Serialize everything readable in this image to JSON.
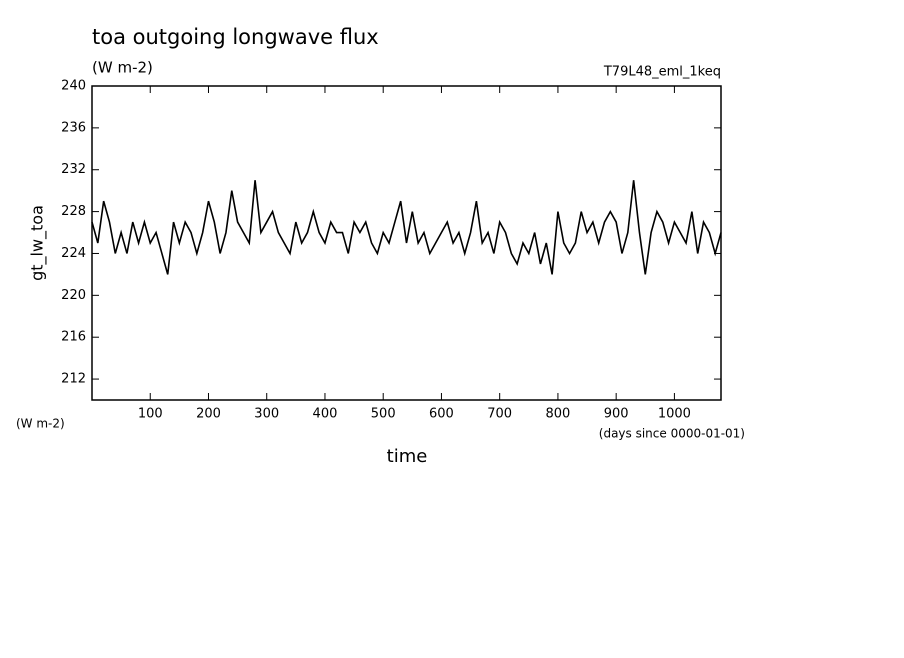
{
  "chart_data": {
    "type": "line",
    "title": "toa outgoing longwave flux",
    "subtitle": "(W m-2)",
    "annotation": "T79L48_eml_1keq",
    "y_label": "gt_lw_toa",
    "y_units": "(W m-2)",
    "x_label": "time",
    "x_units": "(days since 0000-01-01)",
    "x": [
      0,
      10,
      20,
      30,
      40,
      50,
      60,
      70,
      80,
      90,
      100,
      110,
      120,
      130,
      140,
      150,
      160,
      170,
      180,
      190,
      200,
      210,
      220,
      230,
      240,
      250,
      260,
      270,
      280,
      290,
      300,
      310,
      320,
      330,
      340,
      350,
      360,
      370,
      380,
      390,
      400,
      410,
      420,
      430,
      440,
      450,
      460,
      470,
      480,
      490,
      500,
      510,
      520,
      530,
      540,
      550,
      560,
      570,
      580,
      590,
      600,
      610,
      620,
      630,
      640,
      650,
      660,
      670,
      680,
      690,
      700,
      710,
      720,
      730,
      740,
      750,
      760,
      770,
      780,
      790,
      800,
      810,
      820,
      830,
      840,
      850,
      860,
      870,
      880,
      890,
      900,
      910,
      920,
      930,
      940,
      950,
      960,
      970,
      980,
      990,
      1000,
      1010,
      1020,
      1030,
      1040,
      1050,
      1060,
      1070,
      1080
    ],
    "series": [
      {
        "name": "gt_lw_toa",
        "color": "#000000",
        "values": [
          227,
          225,
          229,
          227,
          224,
          226,
          224,
          227,
          225,
          227,
          225,
          226,
          224,
          222,
          227,
          225,
          227,
          226,
          224,
          226,
          229,
          227,
          224,
          226,
          230,
          227,
          226,
          225,
          231,
          226,
          227,
          228,
          226,
          225,
          224,
          227,
          225,
          226,
          228,
          226,
          225,
          227,
          226,
          226,
          224,
          227,
          226,
          227,
          225,
          224,
          226,
          225,
          227,
          229,
          225,
          228,
          225,
          226,
          224,
          225,
          226,
          227,
          225,
          226,
          224,
          226,
          229,
          225,
          226,
          224,
          227,
          226,
          224,
          223,
          225,
          224,
          226,
          223,
          225,
          222,
          228,
          225,
          224,
          225,
          228,
          226,
          227,
          225,
          227,
          228,
          227,
          224,
          226,
          231,
          226,
          222,
          226,
          228,
          227,
          225,
          227,
          226,
          225,
          228,
          224,
          227,
          226,
          224,
          226
        ]
      }
    ],
    "xlim": [
      0,
      1080
    ],
    "ylim": [
      210,
      240
    ],
    "xticks": [
      100,
      200,
      300,
      400,
      500,
      600,
      700,
      800,
      900,
      1000
    ],
    "yticks": [
      212,
      216,
      220,
      224,
      228,
      232,
      236,
      240
    ]
  }
}
